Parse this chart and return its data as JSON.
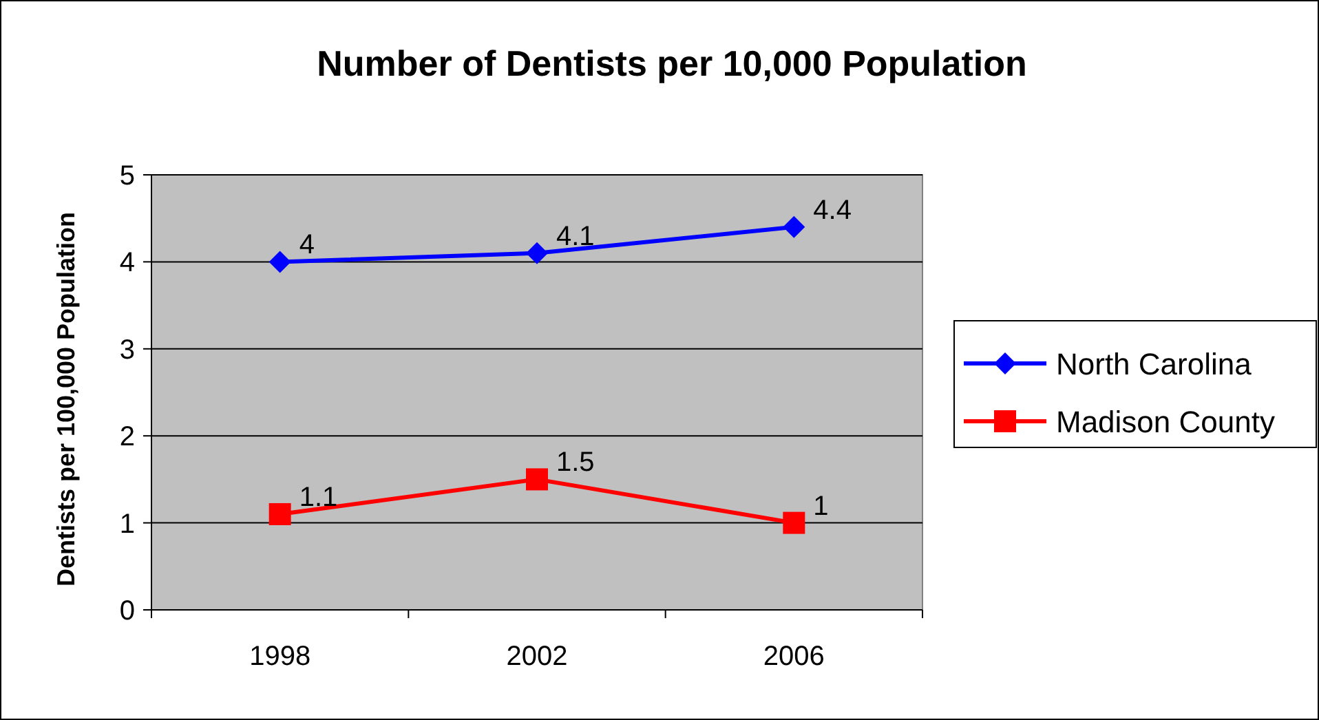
{
  "chart_data": {
    "type": "line",
    "title": "Number of Dentists per 10,000 Population",
    "ylabel": "Dentists per 100,000 Population",
    "categories": [
      "1998",
      "2002",
      "2006"
    ],
    "series": [
      {
        "name": "North Carolina",
        "color": "#0000ff",
        "marker": "diamond",
        "values": [
          4,
          4.1,
          4.4
        ]
      },
      {
        "name": "Madison County",
        "color": "#ff0000",
        "marker": "square",
        "values": [
          1.1,
          1.5,
          1
        ]
      }
    ],
    "ylim": [
      0,
      5
    ],
    "yticks": [
      0,
      1,
      2,
      3,
      4,
      5
    ],
    "grid": "y",
    "legend": "right",
    "data_labels": true
  }
}
